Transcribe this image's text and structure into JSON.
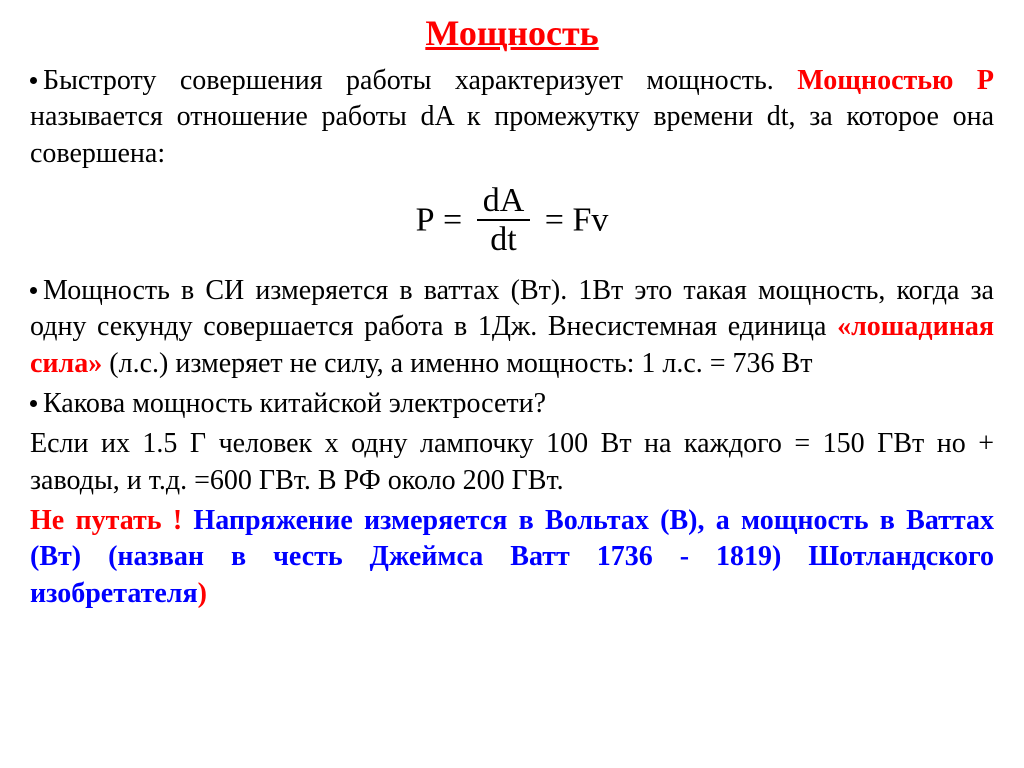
{
  "colors": {
    "title": "#ff0000",
    "red_bold": "#ff0000",
    "blue_bold": "#0000ff",
    "body_text": "#000000",
    "background": "#ffffff"
  },
  "title": "Мощность",
  "para1": {
    "t1": "Быстроту совершения работы характеризует мощность. ",
    "t2": "Мощностью Р",
    "t3": " называется отношение работы dA к промежутку времени dt, за которое она совершена:"
  },
  "formula": {
    "lhs": "P",
    "eq1": " = ",
    "num": "dA",
    "den": "dt",
    "eq2": " = ",
    "rhs": "Fv"
  },
  "para2": {
    "t1": "Мощность в СИ измеряется в ваттах (Вт). 1Вт это такая мощность, когда за одну секунду совершается работа в 1Дж. Внесистемная единица ",
    "t2": "«лошадиная сила»",
    "t3": " (л.с.) измеряет не силу, а именно мощность: 1 л.с. = 736 Вт"
  },
  "para3": {
    "t1": "Какова мощность китайской электросети?"
  },
  "para4": {
    "t1": "Если их 1.5 Г человек х одну лампочку 100 Вт на каждого = 150 ГВт но + заводы, и т.д. =600 ГВт. В РФ около 200 ГВт."
  },
  "para5": {
    "t1": "Не путать !",
    "t2": " Напряжение измеряется в Вольтах (В), а мощность в Ваттах (Вт) (назван в честь Джеймса Ватт 1736 - 1819) Шотландского изобретателя",
    "t3": ")"
  }
}
